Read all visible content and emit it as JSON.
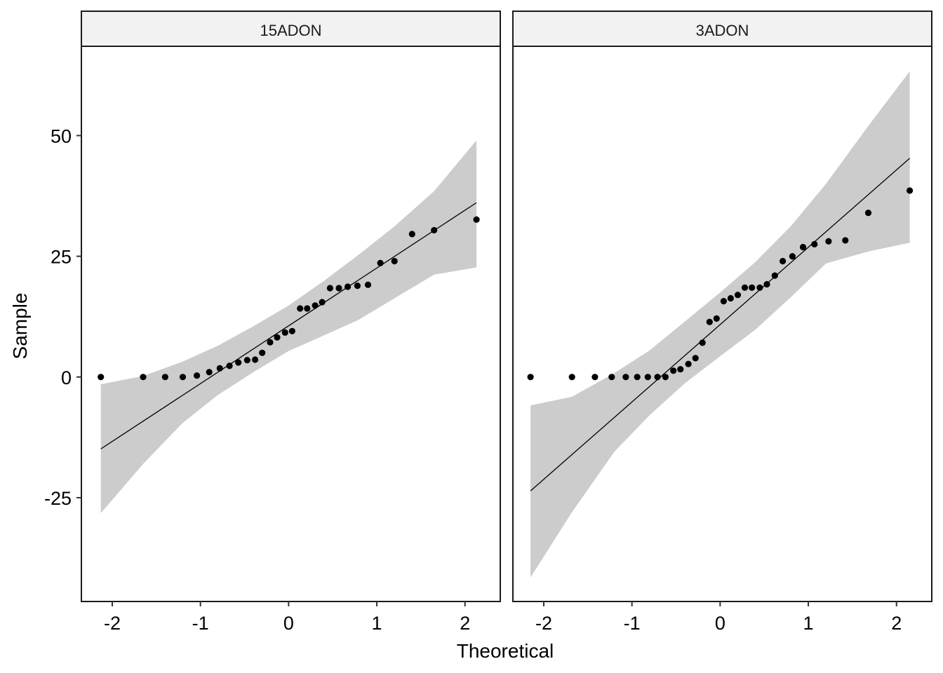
{
  "chart_data": {
    "type": "scatter",
    "xlabel": "Theoretical",
    "ylabel": "Sample",
    "xlim": [
      -2.35,
      2.4
    ],
    "ylim": [
      -46.5,
      68.5
    ],
    "x_ticks": [
      "-2",
      "-1",
      "0",
      "1",
      "2"
    ],
    "x_tick_values": [
      -2,
      -1,
      0,
      1,
      2
    ],
    "y_ticks": [
      "50",
      "25",
      "0",
      "-25"
    ],
    "y_tick_values": [
      50,
      25,
      0,
      -25
    ],
    "grid": false,
    "colors": {
      "points": "#000000",
      "line": "#000000",
      "band": "#cccccc",
      "strip": "#f2f2f2"
    },
    "panels": [
      {
        "strip_label": "15ADON",
        "points": [
          [
            -2.13,
            0
          ],
          [
            -1.65,
            0
          ],
          [
            -1.4,
            0
          ],
          [
            -1.2,
            0
          ],
          [
            -1.04,
            0.3
          ],
          [
            -0.9,
            1
          ],
          [
            -0.78,
            1.8
          ],
          [
            -0.67,
            2.3
          ],
          [
            -0.57,
            3
          ],
          [
            -0.47,
            3.5
          ],
          [
            -0.38,
            3.6
          ],
          [
            -0.3,
            5
          ],
          [
            -0.21,
            7.2
          ],
          [
            -0.13,
            8.2
          ],
          [
            -0.04,
            9.2
          ],
          [
            0.04,
            9.5
          ],
          [
            0.13,
            14.2
          ],
          [
            0.21,
            14.2
          ],
          [
            0.3,
            14.8
          ],
          [
            0.38,
            15.5
          ],
          [
            0.47,
            18.4
          ],
          [
            0.57,
            18.4
          ],
          [
            0.67,
            18.7
          ],
          [
            0.78,
            18.9
          ],
          [
            0.9,
            19.1
          ],
          [
            1.04,
            23.6
          ],
          [
            1.2,
            24
          ],
          [
            1.4,
            29.6
          ],
          [
            1.65,
            30.4
          ],
          [
            2.13,
            32.6
          ]
        ],
        "line": [
          [
            -2.13,
            -14.9
          ],
          [
            2.13,
            36.1
          ]
        ],
        "band_x": [
          -2.13,
          -1.65,
          -1.2,
          -0.8,
          -0.4,
          0,
          0.4,
          0.8,
          1.2,
          1.65,
          2.13
        ],
        "band_upper": [
          -1.5,
          0.2,
          3.2,
          6.5,
          10.5,
          14.8,
          19.9,
          25.4,
          31.2,
          38.5,
          49
        ],
        "band_lower": [
          -28.2,
          -18,
          -9.5,
          -3.7,
          1,
          5.4,
          8.6,
          11.9,
          16.3,
          21.2,
          22.7
        ]
      },
      {
        "strip_label": "3ADON",
        "points": [
          [
            -2.15,
            0
          ],
          [
            -1.68,
            0
          ],
          [
            -1.42,
            0
          ],
          [
            -1.23,
            0
          ],
          [
            -1.07,
            0
          ],
          [
            -0.94,
            0
          ],
          [
            -0.82,
            0
          ],
          [
            -0.71,
            0
          ],
          [
            -0.62,
            0
          ],
          [
            -0.53,
            1.3
          ],
          [
            -0.45,
            1.6
          ],
          [
            -0.36,
            2.7
          ],
          [
            -0.28,
            3.9
          ],
          [
            -0.2,
            7.1
          ],
          [
            -0.12,
            11.4
          ],
          [
            -0.04,
            12.1
          ],
          [
            0.04,
            15.7
          ],
          [
            0.12,
            16.3
          ],
          [
            0.2,
            17
          ],
          [
            0.28,
            18.5
          ],
          [
            0.36,
            18.5
          ],
          [
            0.45,
            18.5
          ],
          [
            0.53,
            19.2
          ],
          [
            0.62,
            21
          ],
          [
            0.71,
            24
          ],
          [
            0.82,
            25
          ],
          [
            0.94,
            26.9
          ],
          [
            1.07,
            27.5
          ],
          [
            1.23,
            28.1
          ],
          [
            1.42,
            28.3
          ],
          [
            1.68,
            34
          ],
          [
            2.15,
            38.6
          ]
        ],
        "line": [
          [
            -2.15,
            -23.6
          ],
          [
            2.15,
            45.3
          ]
        ],
        "band_x": [
          -2.15,
          -1.68,
          -1.2,
          -0.8,
          -0.4,
          0,
          0.4,
          0.8,
          1.2,
          1.68,
          2.15
        ],
        "band_upper": [
          -5.9,
          -4.1,
          0.8,
          5.5,
          11.5,
          17.5,
          23.8,
          31.2,
          40,
          52,
          63.3
        ],
        "band_lower": [
          -41.5,
          -28,
          -15.5,
          -7.9,
          -1.3,
          4.3,
          9.8,
          16.5,
          23.5,
          26,
          27.8
        ]
      }
    ]
  }
}
